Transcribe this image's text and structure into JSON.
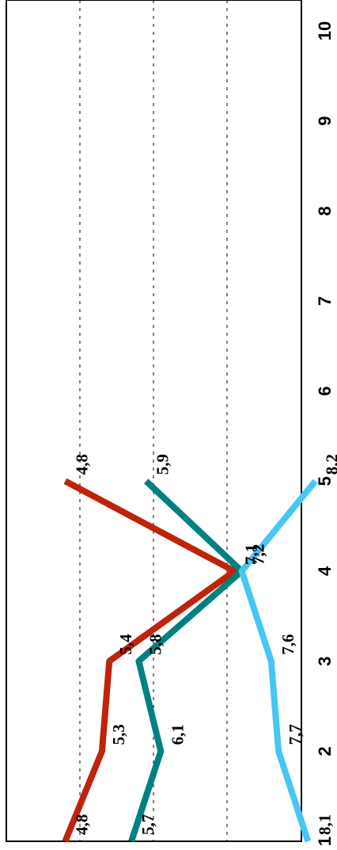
{
  "chart_data": {
    "type": "line",
    "orientation": "rotated-90-clockwise",
    "x": [
      1,
      2,
      3,
      4,
      5,
      6,
      7,
      8,
      9,
      10
    ],
    "x_tick_labels": [
      "1",
      "2",
      "3",
      "4",
      "5",
      "6",
      "7",
      "8",
      "9",
      "10"
    ],
    "xlim": [
      1,
      10
    ],
    "ylim": [
      4,
      8
    ],
    "grid": "dashed, horizontal value gridlines",
    "legend": "none",
    "series": [
      {
        "color": "#c0220a",
        "x": [
          1,
          2,
          3,
          4,
          5
        ],
        "values": [
          4.8,
          5.3,
          5.4,
          7.1,
          4.8
        ],
        "labels": [
          "4,8",
          "5,3",
          "5,4",
          "7,1",
          "4,8"
        ]
      },
      {
        "color": "#008080",
        "x": [
          1,
          2,
          3,
          4,
          5
        ],
        "values": [
          5.7,
          6.1,
          5.8,
          7.2,
          5.9
        ],
        "labels": [
          "5,7",
          "6,1",
          "5,8",
          "7,2",
          "5,9"
        ]
      },
      {
        "color": "#47c6f5",
        "x": [
          1,
          2,
          3,
          4,
          5
        ],
        "values": [
          8.1,
          7.7,
          7.6,
          7.2,
          8.2
        ],
        "labels": [
          "8,1",
          "7,7",
          "7,6",
          "7,2",
          "8,2"
        ]
      }
    ]
  }
}
